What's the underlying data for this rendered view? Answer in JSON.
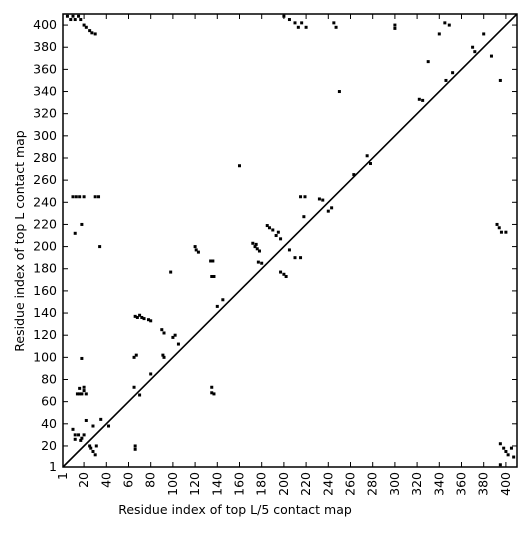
{
  "chart_data": {
    "type": "scatter",
    "x_label": "Residue index of top L/5 contact map",
    "y_label": "Residue index of top L contact map",
    "xlim": [
      1,
      410
    ],
    "ylim": [
      1,
      410
    ],
    "xticks": [
      1,
      20,
      40,
      60,
      80,
      100,
      120,
      140,
      160,
      180,
      200,
      220,
      240,
      260,
      280,
      300,
      320,
      340,
      360,
      380,
      400
    ],
    "yticks": [
      1,
      20,
      40,
      60,
      80,
      100,
      120,
      140,
      160,
      180,
      200,
      220,
      240,
      260,
      280,
      300,
      320,
      340,
      360,
      380,
      400
    ],
    "color": "#000000",
    "x": [
      5,
      8,
      10,
      12,
      15,
      17,
      20,
      22,
      25,
      27,
      30,
      10,
      13,
      16,
      20,
      30,
      33,
      12,
      18,
      18,
      34,
      14,
      16,
      18,
      20,
      22,
      16,
      20,
      10,
      12,
      15,
      18,
      20,
      12,
      17,
      25,
      26,
      28,
      30,
      31,
      22,
      28,
      35,
      42,
      66,
      66,
      65,
      67,
      65,
      70,
      80,
      66,
      68,
      70,
      72,
      74,
      78,
      80,
      90,
      92,
      91,
      92,
      100,
      102,
      105,
      98,
      120,
      121,
      123,
      134,
      136,
      135,
      137,
      135,
      135,
      137,
      140,
      145,
      160,
      172,
      174,
      176,
      178,
      175,
      177,
      180,
      185,
      187,
      190,
      195,
      193,
      197,
      197,
      200,
      202,
      205,
      210,
      215,
      218,
      215,
      219,
      232,
      235,
      240,
      243,
      200,
      205,
      210,
      213,
      216,
      220,
      245,
      247,
      250,
      263,
      275,
      278,
      300,
      300,
      322,
      325,
      330,
      340,
      345,
      349,
      352,
      346,
      370,
      372,
      380,
      387,
      395,
      392,
      394,
      396,
      400,
      395,
      398,
      400,
      402,
      405,
      407,
      395
    ],
    "values": [
      408,
      405,
      408,
      405,
      408,
      405,
      400,
      398,
      395,
      393,
      392,
      245,
      245,
      245,
      245,
      245,
      245,
      212,
      220,
      99,
      200,
      67,
      67,
      67,
      70,
      67,
      72,
      73,
      35,
      30,
      30,
      27,
      30,
      26,
      25,
      20,
      18,
      15,
      12,
      20,
      43,
      38,
      44,
      38,
      17,
      20,
      100,
      102,
      73,
      66,
      85,
      137,
      136,
      138,
      136,
      135,
      134,
      133,
      125,
      122,
      102,
      100,
      118,
      120,
      112,
      177,
      200,
      197,
      195,
      187,
      187,
      173,
      173,
      73,
      68,
      67,
      146,
      152,
      273,
      203,
      200,
      198,
      196,
      202,
      186,
      185,
      219,
      217,
      215,
      213,
      210,
      207,
      177,
      175,
      173,
      197,
      190,
      190,
      227,
      245,
      245,
      243,
      242,
      232,
      235,
      408,
      405,
      402,
      398,
      402,
      398,
      402,
      398,
      340,
      265,
      282,
      275,
      400,
      397,
      333,
      332,
      367,
      392,
      402,
      400,
      357,
      350,
      380,
      376,
      392,
      372,
      350,
      220,
      217,
      213,
      213,
      22,
      18,
      15,
      12,
      18,
      10,
      3
    ]
  }
}
